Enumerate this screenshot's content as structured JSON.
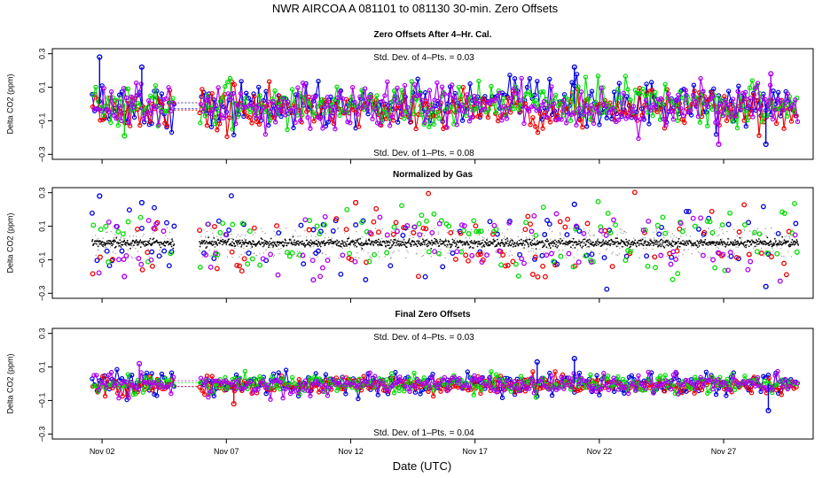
{
  "title": "NWR   AIRCOA A   081101 to 081130   30-min. Zero Offsets",
  "xlabel": "Date (UTC)",
  "colors": {
    "blue": "#0000dd",
    "red": "#ee0000",
    "green": "#00dd00",
    "purple": "#aa00ee",
    "black": "#000000",
    "gray": "#9a9a9a"
  },
  "chart_data": [
    {
      "type": "scatter",
      "title": "Zero Offsets After 4–Hr. Cal.",
      "ylabel": "Delta CO2 (ppm)",
      "ylim": [
        -0.33,
        0.33
      ],
      "yticks": [
        0.3,
        0.1,
        -0.1,
        -0.3
      ],
      "yticklabels": [
        "0.3",
        "0.1",
        "−0.1",
        "−0.3"
      ],
      "xlim": [
        0.0,
        30.6
      ],
      "xticks": [
        2,
        7,
        12,
        17,
        22,
        27
      ],
      "xticklabels": [
        "Nov 02",
        "Nov 07",
        "Nov 12",
        "Nov 17",
        "Nov 22",
        "Nov 27"
      ],
      "x_range_data": [
        1.6,
        30.0
      ],
      "data_gap": [
        4.9,
        5.9
      ],
      "annotations": [
        "Std. Dev. of 4–Pts. = 0.03",
        "Std. Dev. of 1–Pts. = 0.08"
      ],
      "series": [
        {
          "name": "",
          "color": "blue",
          "spread": 0.07,
          "bias": -0.01
        },
        {
          "name": "",
          "color": "red",
          "spread": 0.06,
          "bias": -0.03
        },
        {
          "name": "",
          "color": "green",
          "spread": 0.065,
          "bias": 0.0
        },
        {
          "name": "",
          "color": "purple",
          "spread": 0.065,
          "bias": -0.01
        }
      ],
      "highlights": [
        {
          "x": 1.9,
          "y": 0.28,
          "color": "blue"
        },
        {
          "x": 3.6,
          "y": 0.22,
          "color": "blue"
        },
        {
          "x": 21.0,
          "y": 0.22,
          "color": "blue"
        },
        {
          "x": 28.7,
          "y": -0.24,
          "color": "blue"
        },
        {
          "x": 26.8,
          "y": -0.24,
          "color": "purple"
        },
        {
          "x": 2.9,
          "y": -0.19,
          "color": "green"
        },
        {
          "x": 28.9,
          "y": 0.18,
          "color": "purple"
        }
      ]
    },
    {
      "type": "scatter",
      "title": "Normalized by Gas",
      "ylabel": "Delta CO2 (ppm)",
      "ylim": [
        -0.33,
        0.33
      ],
      "yticks": [
        0.3,
        0.1,
        -0.1,
        -0.3
      ],
      "yticklabels": [
        "0.3",
        "0.1",
        "−0.1",
        "−0.3"
      ],
      "xlim": [
        0.0,
        30.6
      ],
      "xticks": [
        2,
        7,
        12,
        17,
        22,
        27
      ],
      "xticklabels": [
        "Nov 02",
        "Nov 07",
        "Nov 12",
        "Nov 17",
        "Nov 22",
        "Nov 27"
      ],
      "x_range_data": [
        1.6,
        30.0
      ],
      "data_gap": [
        4.9,
        5.9
      ],
      "annotations": [],
      "baseline": 0.0,
      "series": [
        {
          "name": "",
          "color": "blue",
          "spread": 0.09,
          "bias": 0.0
        },
        {
          "name": "",
          "color": "red",
          "spread": 0.09,
          "bias": -0.01
        },
        {
          "name": "",
          "color": "green",
          "spread": 0.09,
          "bias": 0.02
        },
        {
          "name": "",
          "color": "purple",
          "spread": 0.09,
          "bias": 0.0
        }
      ],
      "highlights": [
        {
          "x": 1.9,
          "y": 0.28,
          "color": "blue"
        },
        {
          "x": 3.6,
          "y": 0.24,
          "color": "blue"
        },
        {
          "x": 21.0,
          "y": 0.23,
          "color": "blue"
        },
        {
          "x": 28.7,
          "y": -0.26,
          "color": "blue"
        },
        {
          "x": 12.2,
          "y": 0.24,
          "color": "red"
        },
        {
          "x": 10.5,
          "y": -0.22,
          "color": "purple"
        },
        {
          "x": 2.9,
          "y": -0.2,
          "color": "purple"
        }
      ]
    },
    {
      "type": "scatter",
      "title": "Final Zero Offsets",
      "ylabel": "Delta CO2 (ppm)",
      "ylim": [
        -0.33,
        0.33
      ],
      "yticks": [
        0.3,
        0.1,
        -0.1,
        -0.3
      ],
      "yticklabels": [
        "0.3",
        "0.1",
        "−0.1",
        "−0.3"
      ],
      "xlim": [
        0.0,
        30.6
      ],
      "xticks": [
        2,
        7,
        12,
        17,
        22,
        27
      ],
      "xticklabels": [
        "Nov 02",
        "Nov 07",
        "Nov 12",
        "Nov 17",
        "Nov 22",
        "Nov 27"
      ],
      "x_range_data": [
        1.6,
        30.0
      ],
      "data_gap": [
        4.9,
        5.9
      ],
      "annotations": [
        "Std. Dev. of 4–Pts. = 0.03",
        "Std. Dev. of 1–Pts. = 0.04"
      ],
      "series": [
        {
          "name": "",
          "color": "blue",
          "spread": 0.035,
          "bias": 0.0
        },
        {
          "name": "",
          "color": "red",
          "spread": 0.03,
          "bias": -0.01
        },
        {
          "name": "",
          "color": "green",
          "spread": 0.03,
          "bias": 0.0
        },
        {
          "name": "",
          "color": "purple",
          "spread": 0.03,
          "bias": 0.0
        }
      ],
      "highlights": [
        {
          "x": 21.0,
          "y": 0.15,
          "color": "blue"
        },
        {
          "x": 28.8,
          "y": -0.16,
          "color": "blue"
        },
        {
          "x": 7.3,
          "y": -0.12,
          "color": "red"
        },
        {
          "x": 19.5,
          "y": 0.13,
          "color": "blue"
        },
        {
          "x": 3.5,
          "y": 0.12,
          "color": "purple"
        }
      ]
    }
  ]
}
